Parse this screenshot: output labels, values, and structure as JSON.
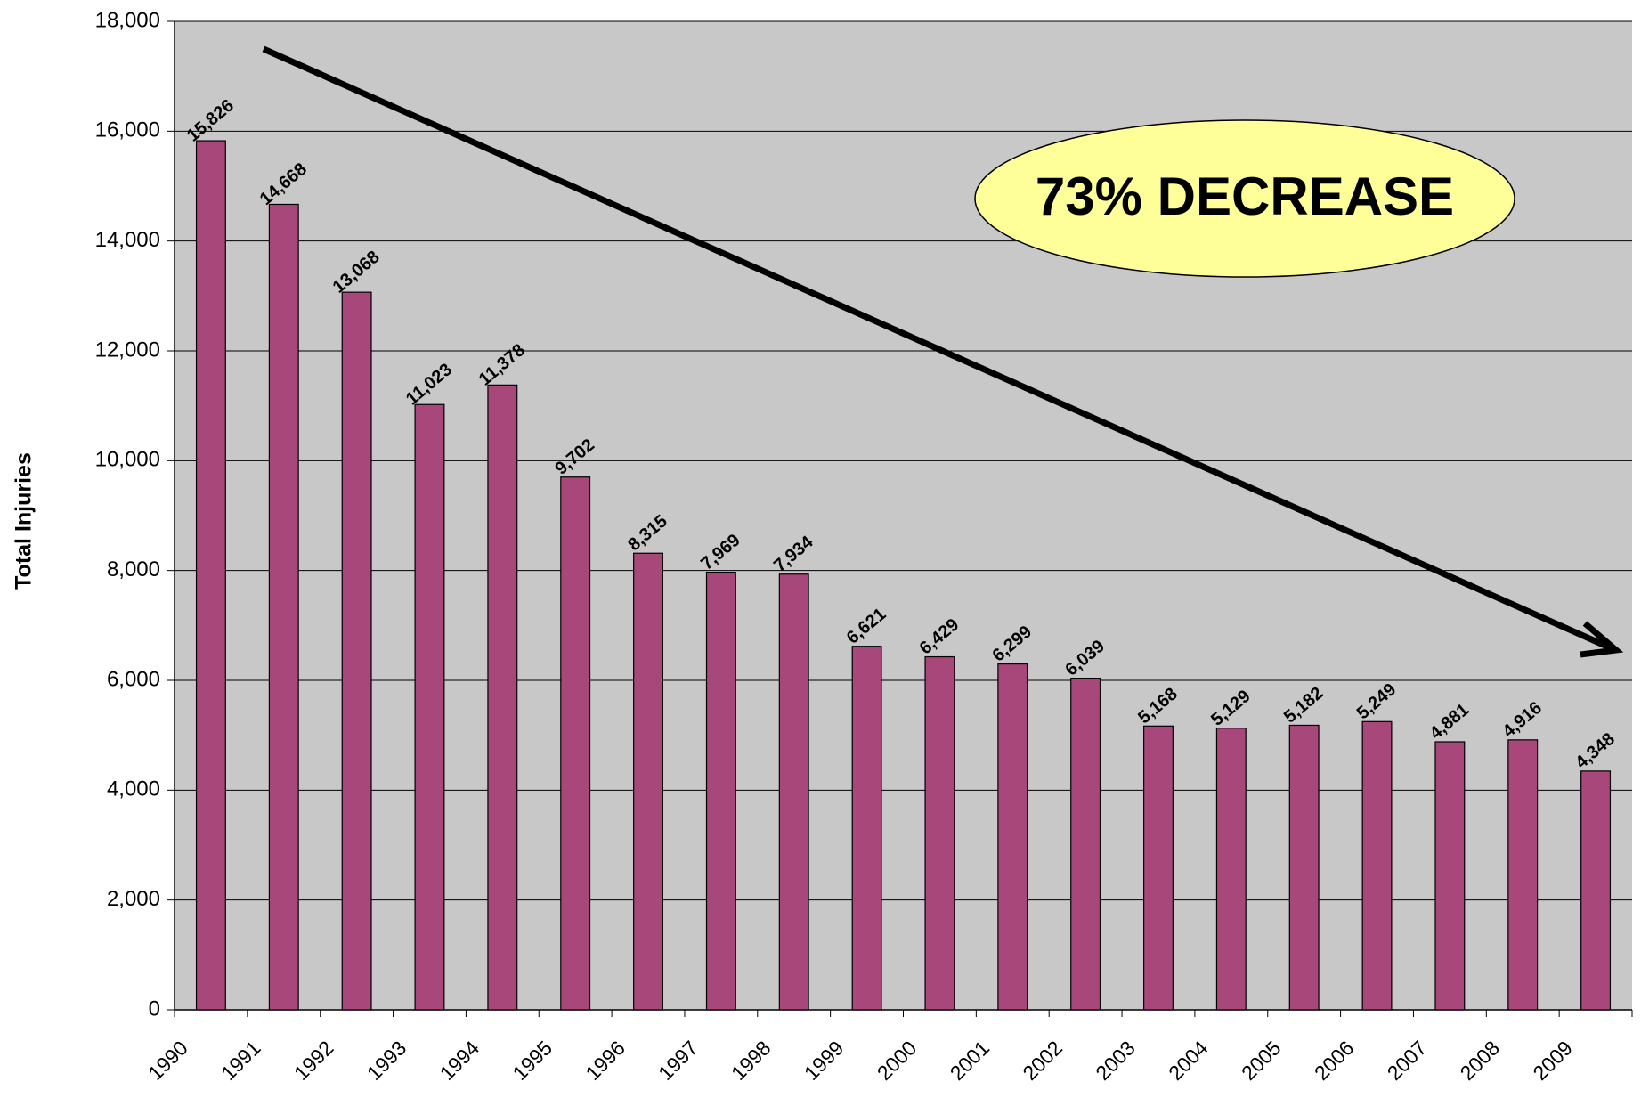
{
  "chart_data": {
    "type": "bar",
    "y_label": "Total Injuries",
    "annotation": "73% DECREASE",
    "categories": [
      "1990",
      "1991",
      "1992",
      "1993",
      "1994",
      "1995",
      "1996",
      "1997",
      "1998",
      "1999",
      "2000",
      "2001",
      "2002",
      "2003",
      "2004",
      "2005",
      "2006",
      "2007",
      "2008",
      "2009"
    ],
    "values": [
      15826,
      14668,
      13068,
      11023,
      11378,
      9702,
      8315,
      7969,
      7934,
      6621,
      6429,
      6299,
      6039,
      5168,
      5129,
      5182,
      5249,
      4881,
      4916,
      4348
    ],
    "value_labels": [
      "15,826",
      "14,668",
      "13,068",
      "11,023",
      "11,378",
      "9,702",
      "8,315",
      "7,969",
      "7,934",
      "6,621",
      "6,429",
      "6,299",
      "6,039",
      "5,168",
      "5,129",
      "5,182",
      "5,249",
      "4,881",
      "4,916",
      "4,348"
    ],
    "color": "#a8477a",
    "ylim": [
      0,
      18000
    ],
    "yticks": [
      0,
      {
        "value": 2000,
        "label": "2,000"
      },
      {
        "value": 4000,
        "label": "4,000"
      },
      {
        "value": 6000,
        "label": "6,000"
      },
      {
        "value": 8000,
        "label": "8,000"
      },
      {
        "value": 10000,
        "label": "10,000"
      },
      {
        "value": 12000,
        "label": "12,000"
      },
      {
        "value": 14000,
        "label": "14,000"
      },
      {
        "value": 16000,
        "label": "16,000"
      },
      {
        "value": 18000,
        "label": "18,000"
      }
    ],
    "grid": true
  }
}
